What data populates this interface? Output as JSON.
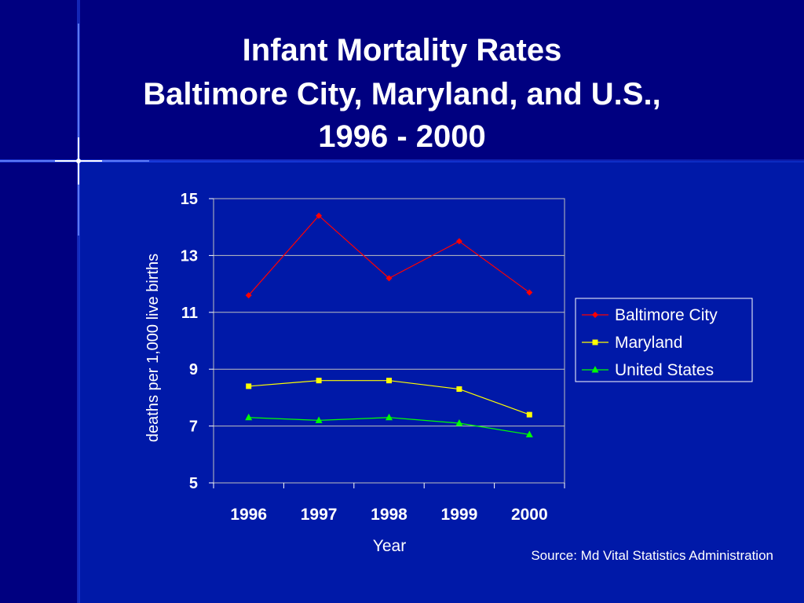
{
  "slide": {
    "title_lines": [
      "Infant Mortality Rates",
      "Baltimore City, Maryland, and U.S.,",
      "1996 - 2000"
    ],
    "source": "Source: Md Vital Statistics Administration",
    "background_color": "#000080",
    "text_color": "#ffffff"
  },
  "chart_data": {
    "type": "line",
    "x": [
      "1996",
      "1997",
      "1998",
      "1999",
      "2000"
    ],
    "xlabel": "Year",
    "ylabel": "deaths per 1,000 live births",
    "ylim": [
      5,
      15
    ],
    "yticks": [
      "15",
      "13",
      "11",
      "9",
      "7",
      "5"
    ],
    "grid": true,
    "legend_position": "right",
    "series": [
      {
        "name": "Baltimore City",
        "values": [
          11.6,
          14.4,
          12.2,
          13.5,
          11.7
        ],
        "color": "#ff0000",
        "marker": "diamond"
      },
      {
        "name": "Maryland",
        "values": [
          8.4,
          8.6,
          8.6,
          8.3,
          7.4
        ],
        "color": "#ffff00",
        "marker": "square"
      },
      {
        "name": "United States",
        "values": [
          7.3,
          7.2,
          7.3,
          7.1,
          6.7
        ],
        "color": "#00ff00",
        "marker": "triangle"
      }
    ]
  }
}
